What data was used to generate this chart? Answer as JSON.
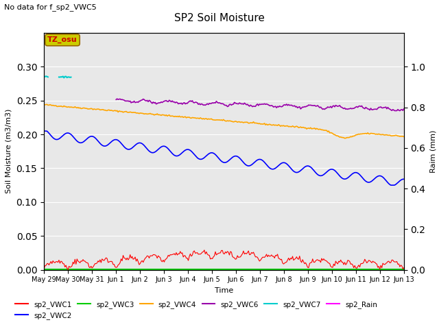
{
  "title": "SP2 Soil Moisture",
  "no_data_text": "No data for f_sp2_VWC5",
  "xlabel": "Time",
  "ylabel_left": "Soil Moisture (m3/m3)",
  "ylabel_right": "Raim (mm)",
  "bg_color": "#e8e8e8",
  "ylim_left": [
    0.0,
    0.35
  ],
  "ylim_right": [
    0.0,
    1.1667
  ],
  "x_ticks": [
    "May 29",
    "May 30",
    "May 31",
    "Jun 1",
    "Jun 2",
    "Jun 3",
    "Jun 4",
    "Jun 5",
    "Jun 6",
    "Jun 7",
    "Jun 8",
    "Jun 9",
    "Jun 10",
    "Jun 11",
    "Jun 12",
    "Jun 13"
  ],
  "yticks_left": [
    0.0,
    0.05,
    0.1,
    0.15,
    0.2,
    0.25,
    0.3
  ],
  "yticks_right": [
    0.0,
    0.2,
    0.4,
    0.6,
    0.8,
    1.0
  ],
  "series": {
    "sp2_VWC1": {
      "color": "#ff0000"
    },
    "sp2_VWC2": {
      "color": "#0000ff"
    },
    "sp2_VWC3": {
      "color": "#00cc00"
    },
    "sp2_VWC4": {
      "color": "#ffa500"
    },
    "sp2_VWC6": {
      "color": "#9900aa"
    },
    "sp2_VWC7": {
      "color": "#00cccc"
    },
    "sp2_Rain": {
      "color": "#ff00ff"
    }
  },
  "tz_label": "TZ_osu",
  "tz_bg": "#cccc00",
  "tz_border": "#996600"
}
